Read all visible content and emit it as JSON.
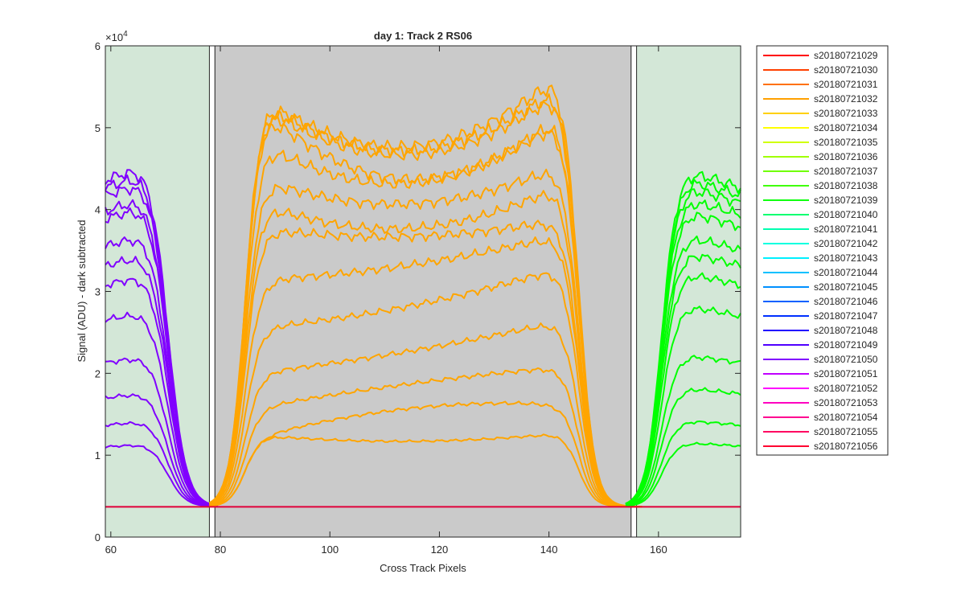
{
  "chart_data": {
    "type": "line",
    "title": "day 1: Track 2  RS06",
    "xlabel": "Cross Track Pixels",
    "ylabel": "Signal (ADU) - dark subtracted",
    "xlim": [
      59,
      175
    ],
    "ylim": [
      0,
      60000
    ],
    "x_ticks": [
      60,
      80,
      100,
      120,
      140,
      160
    ],
    "y_ticks": [
      0,
      1,
      2,
      3,
      4,
      5,
      6
    ],
    "y_exponent_base": "×10",
    "y_exponent_power": "4",
    "baseline": 3700,
    "grid": false,
    "legend_position": "outside-right",
    "background_colors": {
      "left_region": "#d3e7d7",
      "center_region": "#cacaca",
      "right_region": "#d3e7d7"
    },
    "regions": [
      {
        "x0": 59,
        "x1": 78
      },
      {
        "x0": 78,
        "x1": 79
      },
      {
        "x0": 79,
        "x1": 155
      },
      {
        "x0": 155,
        "x1": 156
      },
      {
        "x0": 156,
        "x1": 175
      }
    ],
    "groups": {
      "left": {
        "color": "#8000ff",
        "peak_x": 66,
        "peaks": [
          42000,
          41000,
          40000,
          38000,
          37000,
          33500,
          31000,
          28500,
          24000,
          18500,
          14000,
          10500,
          7700
        ],
        "start_ratio": 0.95,
        "falloff_center": 70.5,
        "falloff_width": 1.6
      },
      "center": {
        "color": "#ffa500",
        "left_values": [
          50000,
          49500,
          49000,
          48500,
          44500,
          40000,
          37000,
          34000,
          27800,
          22000,
          16500,
          12300,
          8700
        ],
        "mid_values": [
          44000,
          43500,
          43000,
          40000,
          39500,
          37000,
          34000,
          33000,
          29500,
          24500,
          19000,
          15000,
          12000,
          8000
        ],
        "right_values": [
          52500,
          51000,
          50500,
          47500,
          47000,
          41500,
          39000,
          35000,
          33000,
          29000,
          22500,
          17000,
          12500,
          8900
        ],
        "rise_center": 84.5,
        "rise_width": 1.4,
        "fall_center": 145.5,
        "fall_width": 1.4
      },
      "right": {
        "color": "#00ff00",
        "peaks": [
          41000,
          40000,
          39000,
          37500,
          36000,
          33000,
          31000,
          28500,
          24500,
          18500,
          14500,
          10500,
          7800
        ],
        "end_ratio": 0.95,
        "rise_center": 160.5,
        "rise_width": 1.4
      }
    },
    "series": [
      {
        "name": "s20180721029",
        "color": "#ff0000"
      },
      {
        "name": "s20180721030",
        "color": "#ff4000"
      },
      {
        "name": "s20180721031",
        "color": "#ff7000"
      },
      {
        "name": "s20180721032",
        "color": "#ffa000"
      },
      {
        "name": "s20180721033",
        "color": "#ffd000"
      },
      {
        "name": "s20180721034",
        "color": "#ffff00"
      },
      {
        "name": "s20180721035",
        "color": "#d0ff00"
      },
      {
        "name": "s20180721036",
        "color": "#a0ff00"
      },
      {
        "name": "s20180721037",
        "color": "#70ff00"
      },
      {
        "name": "s20180721038",
        "color": "#40ff00"
      },
      {
        "name": "s20180721039",
        "color": "#10ff10"
      },
      {
        "name": "s20180721040",
        "color": "#00ff70"
      },
      {
        "name": "s20180721041",
        "color": "#00ffb0"
      },
      {
        "name": "s20180721042",
        "color": "#00ffe0"
      },
      {
        "name": "s20180721043",
        "color": "#00f0ff"
      },
      {
        "name": "s20180721044",
        "color": "#00c0ff"
      },
      {
        "name": "s20180721045",
        "color": "#0090ff"
      },
      {
        "name": "s20180721046",
        "color": "#0060ff"
      },
      {
        "name": "s20180721047",
        "color": "#0030ff"
      },
      {
        "name": "s20180721048",
        "color": "#2000ff"
      },
      {
        "name": "s20180721049",
        "color": "#5000ff"
      },
      {
        "name": "s20180721050",
        "color": "#8000ff"
      },
      {
        "name": "s20180721051",
        "color": "#c000ff"
      },
      {
        "name": "s20180721052",
        "color": "#ff00ff"
      },
      {
        "name": "s20180721053",
        "color": "#ff00c0"
      },
      {
        "name": "s20180721054",
        "color": "#ff0090"
      },
      {
        "name": "s20180721055",
        "color": "#ff0060"
      },
      {
        "name": "s20180721056",
        "color": "#ff0030"
      }
    ]
  }
}
